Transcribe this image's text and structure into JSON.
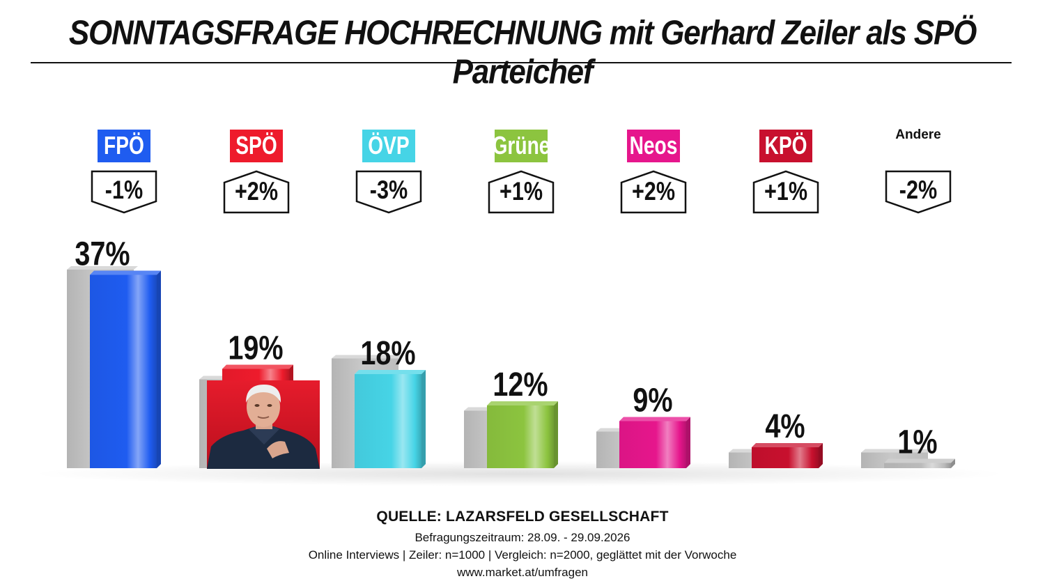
{
  "title": "SONNTAGSFRAGE HOCHRECHNUNG mit Gerhard Zeiler als SPÖ Parteichef",
  "chart_data": {
    "type": "bar",
    "categories": [
      "FPÖ",
      "SPÖ",
      "ÖVP",
      "Grüne",
      "Neos",
      "KPÖ",
      "Andere"
    ],
    "series": [
      {
        "values": [
          37,
          19,
          18,
          12,
          9,
          4,
          1
        ]
      }
    ],
    "value_labels": [
      "37%",
      "19%",
      "18%",
      "12%",
      "9%",
      "4%",
      "1%"
    ],
    "changes": [
      "-1%",
      "+2%",
      "-3%",
      "+1%",
      "+2%",
      "+1%",
      "-2%"
    ],
    "change_direction": [
      "down",
      "up",
      "down",
      "up",
      "up",
      "up",
      "down"
    ],
    "previous_values": [
      38,
      17,
      21,
      11,
      7,
      3,
      3
    ],
    "party_colors": [
      "#1f5cf0",
      "#ee1b2c",
      "#46d4e6",
      "#8cc43f",
      "#e6168c",
      "#c8102e",
      null
    ],
    "ylim": [
      0,
      40
    ]
  },
  "footer": {
    "source": "QUELLE: LAZARSFELD GESELLSCHAFT",
    "period": "Befragungszeitraum: 28.09. - 29.09.2026",
    "method": "Online Interviews | Zeiler: n=1000 | Vergleich: n=2000, geglättet mit der Vorwoche",
    "url": "www.market.at/umfragen"
  }
}
